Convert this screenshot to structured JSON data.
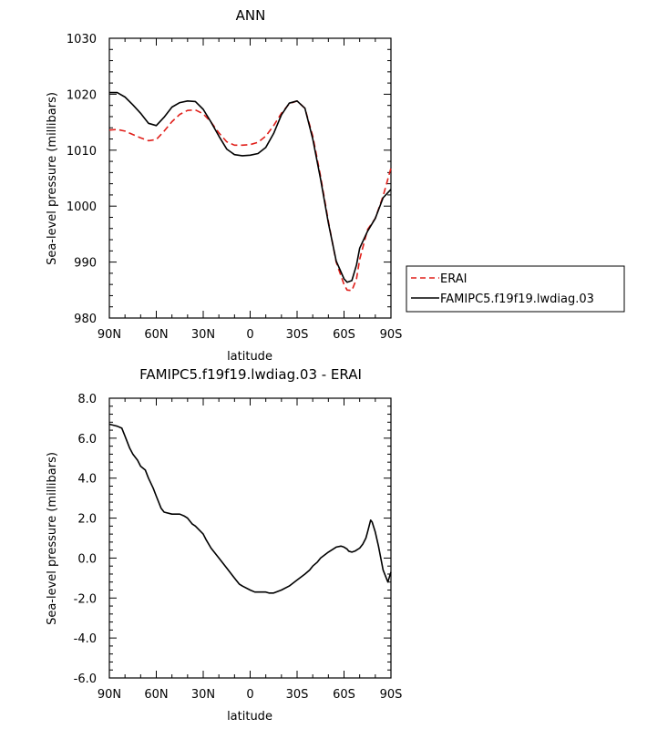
{
  "chart_data": [
    {
      "type": "line",
      "title": "ANN",
      "xlabel": "latitude",
      "ylabel": "Sea-level pressure (millibars)",
      "x_tick_labels": [
        "90N",
        "60N",
        "30N",
        "0",
        "30S",
        "60S",
        "90S"
      ],
      "x_tick_values": [
        90,
        60,
        30,
        0,
        -30,
        -60,
        -90
      ],
      "xlim": [
        90,
        -90
      ],
      "ylim": [
        980,
        1030
      ],
      "y_tick_values": [
        980,
        990,
        1000,
        1010,
        1020,
        1030
      ],
      "y_tick_labels": [
        "980",
        "990",
        "1000",
        "1010",
        "1020",
        "1030"
      ],
      "legend_position": "right",
      "series": [
        {
          "name": "ERAI",
          "color": "#e0201b",
          "dash": "dashed",
          "x": [
            90,
            85,
            80,
            75,
            70,
            65,
            60,
            55,
            50,
            45,
            40,
            35,
            30,
            25,
            20,
            15,
            10,
            5,
            0,
            -5,
            -10,
            -15,
            -20,
            -25,
            -30,
            -35,
            -40,
            -45,
            -50,
            -55,
            -60,
            -62,
            -65,
            -68,
            -70,
            -75,
            -80,
            -85,
            -90
          ],
          "y": [
            1013.6,
            1013.7,
            1013.4,
            1012.8,
            1012.2,
            1011.7,
            1011.9,
            1013.4,
            1015.1,
            1016.4,
            1017.1,
            1017.2,
            1016.5,
            1015.0,
            1013.1,
            1011.5,
            1010.9,
            1010.9,
            1011.0,
            1011.4,
            1012.5,
            1014.4,
            1016.6,
            1018.3,
            1018.8,
            1017.5,
            1012.5,
            1005.3,
            997.3,
            990.0,
            986.0,
            985.0,
            984.9,
            987.0,
            990.5,
            995.8,
            997.8,
            1001.8,
            1006.8
          ]
        },
        {
          "name": "FAMIPC5.f19f19.lwdiag.03",
          "color": "#000000",
          "dash": "solid",
          "x": [
            90,
            85,
            80,
            75,
            70,
            65,
            60,
            55,
            50,
            45,
            40,
            35,
            30,
            25,
            20,
            15,
            10,
            5,
            0,
            -5,
            -10,
            -15,
            -20,
            -25,
            -30,
            -35,
            -40,
            -45,
            -50,
            -55,
            -60,
            -62,
            -65,
            -68,
            -70,
            -75,
            -80,
            -85,
            -90
          ],
          "y": [
            1020.3,
            1020.3,
            1019.5,
            1018.1,
            1016.6,
            1014.8,
            1014.4,
            1015.9,
            1017.7,
            1018.5,
            1018.8,
            1018.7,
            1017.3,
            1015.0,
            1012.5,
            1010.2,
            1009.2,
            1009.0,
            1009.1,
            1009.4,
            1010.5,
            1013.0,
            1016.3,
            1018.4,
            1018.8,
            1017.5,
            1012.0,
            1004.8,
            997.0,
            990.2,
            987.0,
            986.4,
            986.7,
            989.5,
            992.5,
            995.5,
            997.8,
            1001.5,
            1003.0
          ]
        }
      ]
    },
    {
      "type": "line",
      "title": "FAMIPC5.f19f19.lwdiag.03 - ERAI",
      "xlabel": "latitude",
      "ylabel": "Sea-level pressure (millibars)",
      "x_tick_labels": [
        "90N",
        "60N",
        "30N",
        "0",
        "30S",
        "60S",
        "90S"
      ],
      "x_tick_values": [
        90,
        60,
        30,
        0,
        -30,
        -60,
        -90
      ],
      "xlim": [
        90,
        -90
      ],
      "ylim": [
        -6,
        8
      ],
      "y_tick_values": [
        -6,
        -4,
        -2,
        0,
        2,
        4,
        6,
        8
      ],
      "y_tick_labels": [
        "-6.0",
        "-4.0",
        "-2.0",
        "0.0",
        "2.0",
        "4.0",
        "6.0",
        "8.0"
      ],
      "series": [
        {
          "color": "#000000",
          "dash": "solid",
          "x": [
            90,
            85,
            82,
            80,
            77,
            75,
            72,
            70,
            67,
            65,
            62,
            60,
            57,
            55,
            50,
            45,
            42,
            40,
            37,
            35,
            30,
            28,
            25,
            20,
            15,
            12,
            10,
            7,
            5,
            0,
            -3,
            -5,
            -8,
            -10,
            -12,
            -15,
            -20,
            -25,
            -30,
            -35,
            -38,
            -40,
            -43,
            -45,
            -50,
            -55,
            -58,
            -60,
            -62,
            -63,
            -65,
            -67,
            -68,
            -70,
            -72,
            -74,
            -75,
            -77,
            -78,
            -80,
            -82,
            -85,
            -88,
            -90
          ],
          "y": [
            6.7,
            6.6,
            6.5,
            6.1,
            5.5,
            5.2,
            4.9,
            4.6,
            4.4,
            4.0,
            3.5,
            3.1,
            2.5,
            2.3,
            2.2,
            2.2,
            2.1,
            2.0,
            1.7,
            1.6,
            1.2,
            0.9,
            0.5,
            0.0,
            -0.5,
            -0.8,
            -1.0,
            -1.3,
            -1.4,
            -1.6,
            -1.7,
            -1.7,
            -1.7,
            -1.7,
            -1.75,
            -1.75,
            -1.6,
            -1.4,
            -1.1,
            -0.8,
            -0.6,
            -0.4,
            -0.2,
            0.0,
            0.3,
            0.55,
            0.6,
            0.55,
            0.45,
            0.35,
            0.3,
            0.35,
            0.4,
            0.5,
            0.7,
            1.0,
            1.3,
            1.9,
            1.8,
            1.3,
            0.6,
            -0.6,
            -1.2,
            -0.7
          ]
        }
      ]
    }
  ],
  "legend": {
    "items": [
      {
        "label": "ERAI",
        "color": "#e0201b",
        "dash": "dashed"
      },
      {
        "label": "FAMIPC5.f19f19.lwdiag.03",
        "color": "#000000",
        "dash": "solid"
      }
    ]
  }
}
